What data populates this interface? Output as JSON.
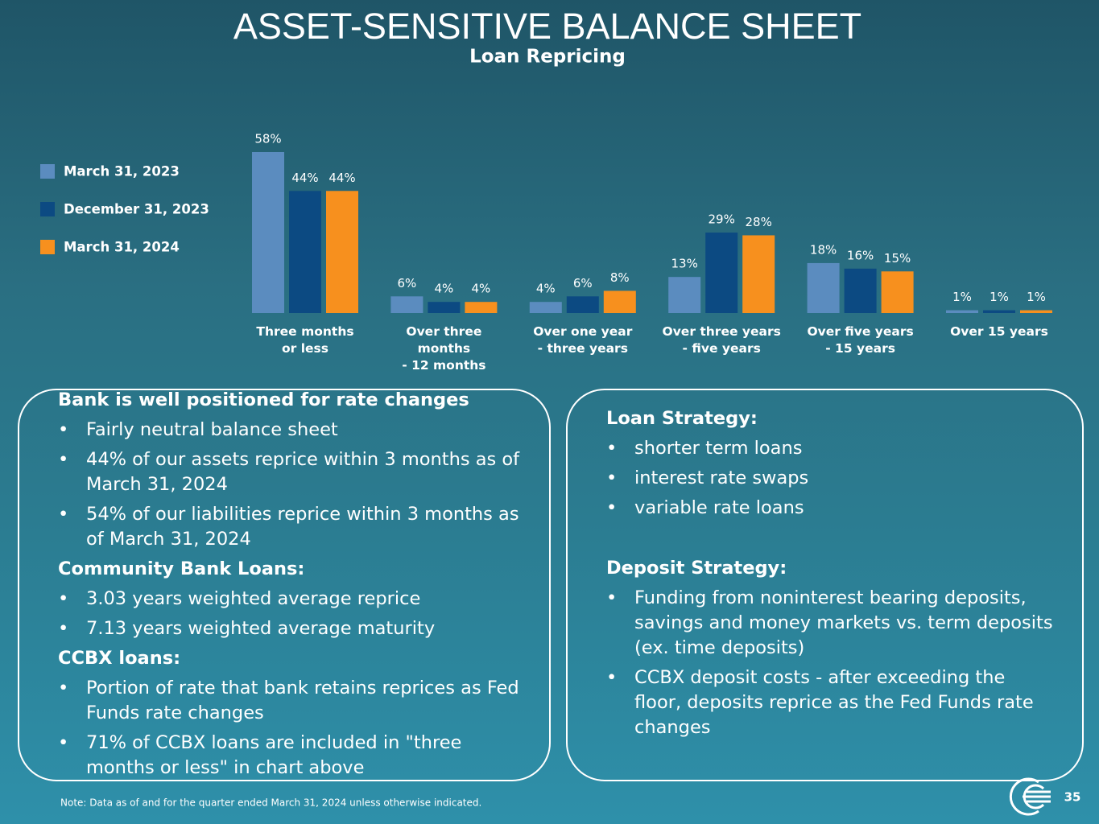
{
  "header": {
    "title": "ASSET-SENSITIVE BALANCE SHEET"
  },
  "chart_data": {
    "type": "bar",
    "title": "Loan Repricing",
    "categories": [
      "Three months\nor less",
      "Over three\nmonths\n- 12 months",
      "Over one year\n-  three years",
      "Over three years\n- five years",
      "Over five years\n- 15 years",
      "Over 15 years"
    ],
    "series": [
      {
        "name": "March 31, 2023",
        "color": "#5b8cbf",
        "values": [
          58,
          6,
          4,
          13,
          18,
          1
        ],
        "value_labels": [
          "58%",
          "6%",
          "4%",
          "13%",
          "18%",
          "1%"
        ]
      },
      {
        "name": "December 31, 2023",
        "color": "#0c4a82",
        "values": [
          44,
          4,
          6,
          29,
          16,
          1
        ],
        "value_labels": [
          "44%",
          "4%",
          "6%",
          "29%",
          "16%",
          "1%"
        ]
      },
      {
        "name": "March 31, 2024",
        "color": "#f7901e",
        "values": [
          44,
          4,
          8,
          28,
          15,
          1
        ],
        "value_labels": [
          "44%",
          "4%",
          "8%",
          "28%",
          "15%",
          "1%"
        ]
      }
    ],
    "legend": "left"
  },
  "left_panel": {
    "sections": [
      {
        "heading": "Bank is well positioned for rate changes",
        "items": [
          "Fairly neutral balance sheet",
          "44% of our assets reprice within 3 months as of March 31, 2024",
          "54% of our liabilities reprice within 3 months as of March 31, 2024"
        ]
      },
      {
        "heading": "Community Bank Loans:",
        "items": [
          "3.03 years weighted average reprice",
          "7.13 years weighted average maturity"
        ]
      },
      {
        "heading": "CCBX loans:",
        "items": [
          "Portion of rate that bank retains reprices as Fed Funds rate changes",
          "71% of CCBX loans are included in \"three months or less\" in chart above"
        ]
      }
    ]
  },
  "right_panel": {
    "sections": [
      {
        "heading": "Loan Strategy:",
        "items": [
          "shorter term loans",
          "interest rate swaps",
          "variable rate loans"
        ]
      },
      {
        "heading": "Deposit Strategy:",
        "items": [
          "Funding from noninterest bearing deposits, savings and money markets  vs. term deposits (ex. time deposits)",
          "CCBX deposit costs - after exceeding the floor, deposits reprice as the Fed Funds rate changes"
        ]
      }
    ]
  },
  "footer": {
    "note": "Note: Data as of and for the quarter ended March 31, 2024 unless otherwise indicated.",
    "page_number": "35"
  }
}
